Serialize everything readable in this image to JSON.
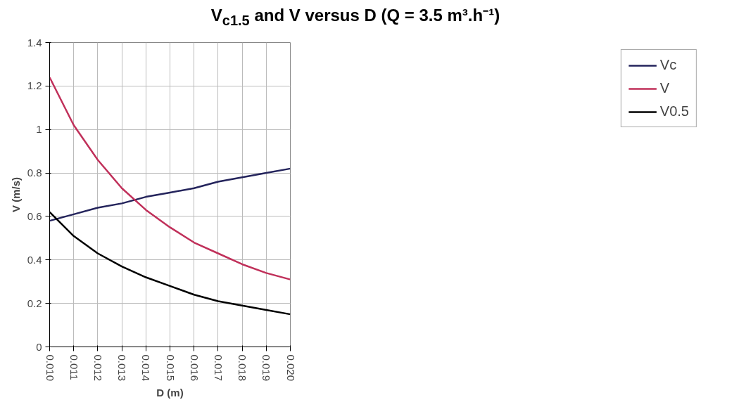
{
  "chart_data": {
    "type": "line",
    "title": "V$_{c1.5}$ and V versus D (Q = 3.5 m³.h⁻¹)",
    "xlabel": "D (m)",
    "ylabel": "V (m/s)",
    "x": [
      0.01,
      0.011,
      0.012,
      0.013,
      0.014,
      0.015,
      0.016,
      0.017,
      0.018,
      0.019,
      0.02
    ],
    "series": [
      {
        "name": "Vc",
        "color": "#24245c",
        "values": [
          0.58,
          0.61,
          0.64,
          0.66,
          0.69,
          0.71,
          0.73,
          0.76,
          0.78,
          0.8,
          0.82
        ]
      },
      {
        "name": "V",
        "color": "#c0305a",
        "values": [
          1.24,
          1.02,
          0.86,
          0.73,
          0.63,
          0.55,
          0.48,
          0.43,
          0.38,
          0.34,
          0.31
        ]
      },
      {
        "name": "V0.5",
        "color": "#000000",
        "values": [
          0.62,
          0.51,
          0.43,
          0.37,
          0.32,
          0.28,
          0.24,
          0.21,
          0.19,
          0.17,
          0.15
        ]
      }
    ],
    "xlim": [
      0.01,
      0.02
    ],
    "xticks": [
      {
        "value": 0.01,
        "label": "0.010"
      },
      {
        "value": 0.011,
        "label": "0.011"
      },
      {
        "value": 0.012,
        "label": "0.012"
      },
      {
        "value": 0.013,
        "label": "0.013"
      },
      {
        "value": 0.014,
        "label": "0.014"
      },
      {
        "value": 0.015,
        "label": "0.015"
      },
      {
        "value": 0.016,
        "label": "0.016"
      },
      {
        "value": 0.017,
        "label": "0.017"
      },
      {
        "value": 0.018,
        "label": "0.018"
      },
      {
        "value": 0.019,
        "label": "0.019"
      },
      {
        "value": 0.02,
        "label": "0.020"
      }
    ],
    "ylim": [
      0,
      1.4
    ],
    "yticks": [
      0,
      0.2,
      0.4,
      0.6,
      0.8,
      1,
      1.2,
      1.4
    ],
    "grid": true,
    "legend": "right",
    "marker": "none",
    "line_style": "solid"
  }
}
